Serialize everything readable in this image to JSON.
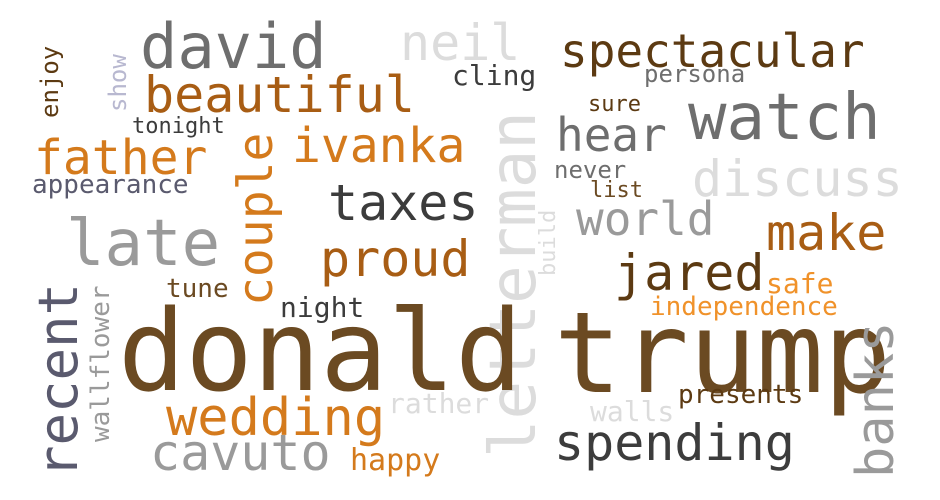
{
  "colors": {
    "background": "#ffffff",
    "dark_brown": "#5c3a12",
    "brown": "#6b4a22",
    "orange": "#d47a1c",
    "light_orange": "#f0922a",
    "rust": "#a85d14",
    "dark_gray": "#3c3c3c",
    "gray": "#6e6e6e",
    "mid_gray": "#9a9a9a",
    "light_gray": "#c8c8c8",
    "very_light_gray": "#dcdcdc",
    "slate": "#5a5a6e",
    "lavender": "#b8b8d0"
  },
  "words": {
    "david": "david",
    "neil": "neil",
    "spectacular": "spectacular",
    "show": "show",
    "enjoy": "enjoy",
    "cling": "cling",
    "persona": "persona",
    "beautiful": "beautiful",
    "sure": "sure",
    "watch": "watch",
    "tonight": "tonight",
    "father": "father",
    "ivanka": "ivanka",
    "hear": "hear",
    "couple": "couple",
    "never": "never",
    "appearance": "appearance",
    "list": "list",
    "discuss": "discuss",
    "taxes": "taxes",
    "letterman": "letterman",
    "world": "world",
    "build": "build",
    "late": "late",
    "make": "make",
    "proud": "proud",
    "jared": "jared",
    "safe": "safe",
    "tune": "tune",
    "wallflower": "wallflower",
    "independence": "independence",
    "night": "night",
    "recent": "recent",
    "donald": "donald",
    "trump": "trump",
    "banks": "banks",
    "presents": "presents",
    "rather": "rather",
    "walls": "walls",
    "wedding": "wedding",
    "spending": "spending",
    "cavuto": "cavuto",
    "happy": "happy"
  }
}
